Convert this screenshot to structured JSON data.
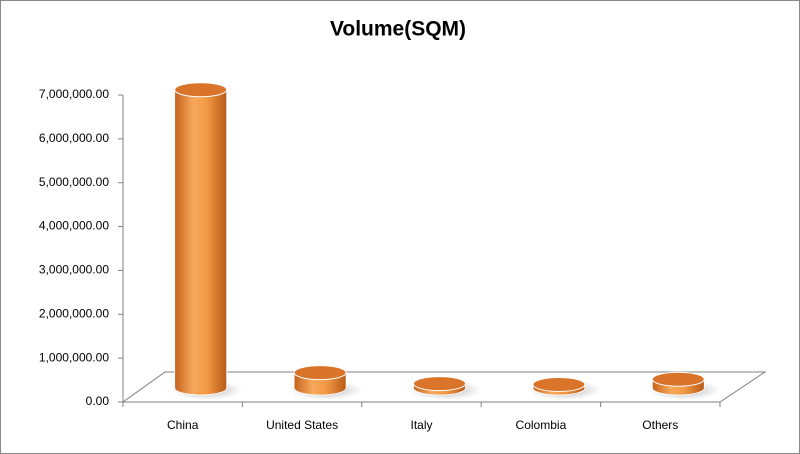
{
  "chart_data": {
    "type": "bar",
    "title": "Volume(SQM)",
    "categories": [
      "China",
      "United States",
      "Italy",
      "Colombia",
      "Others"
    ],
    "values": [
      6800000,
      350000,
      100000,
      80000,
      200000
    ],
    "color": "#f0923a",
    "ylim": [
      0,
      7000000
    ],
    "yticks": [
      {
        "value": 0,
        "label": "0.00"
      },
      {
        "value": 1000000,
        "label": "1,000,000.00"
      },
      {
        "value": 2000000,
        "label": "2,000,000.00"
      },
      {
        "value": 3000000,
        "label": "3,000,000.00"
      },
      {
        "value": 4000000,
        "label": "4,000,000.00"
      },
      {
        "value": 5000000,
        "label": "5,000,000.00"
      },
      {
        "value": 6000000,
        "label": "6,000,000.00"
      },
      {
        "value": 7000000,
        "label": "7,000,000.00"
      }
    ]
  }
}
